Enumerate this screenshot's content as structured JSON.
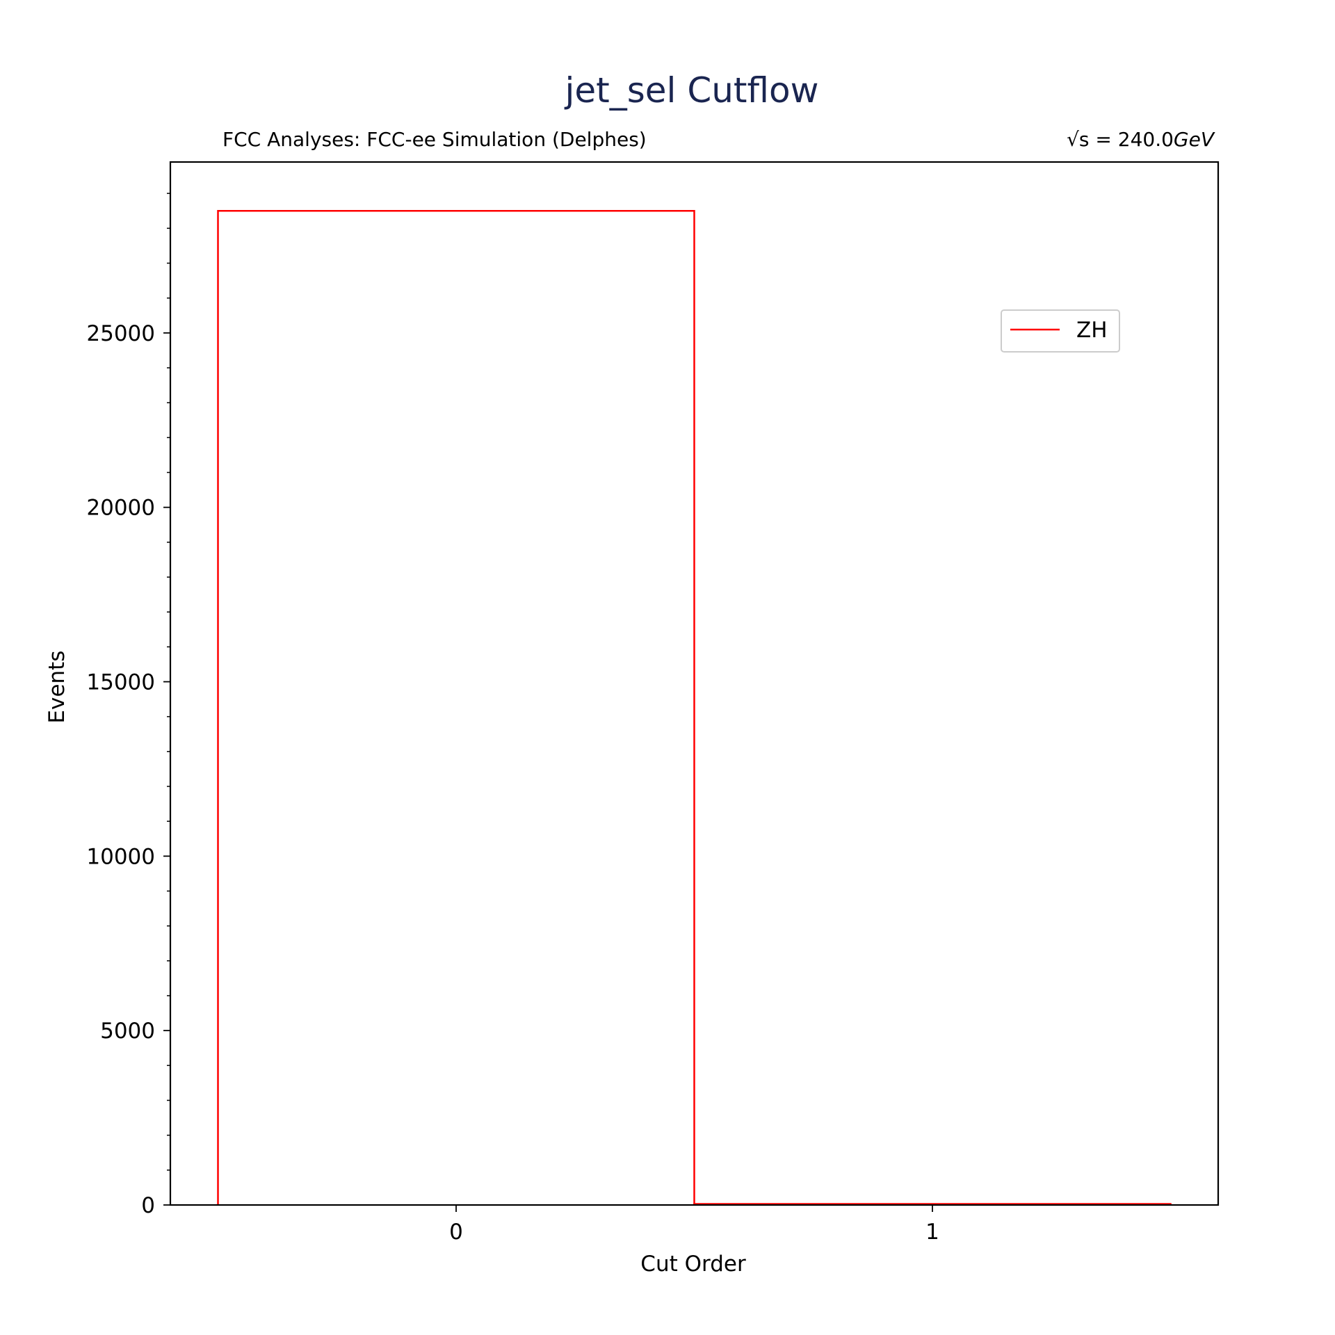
{
  "colors": {
    "title": "#1a2550",
    "series": "#ff0000",
    "axes": "#000000",
    "legend_border": "#cccccc"
  },
  "chart_data": {
    "type": "bar",
    "style": "step-histogram",
    "title": "jet_sel Cutflow",
    "subtitle_left": "FCC Analyses: FCC-ee Simulation (Delphes)",
    "subtitle_right_prefix": "√s = 240.0",
    "subtitle_right_unit": "GeV",
    "xlabel": "Cut Order",
    "ylabel": "Events",
    "categories": [
      "0",
      "1"
    ],
    "x_bin_edges": [
      -0.5,
      0.5,
      1.5
    ],
    "xlim": [
      -0.6,
      1.6
    ],
    "ylim": [
      0,
      29900
    ],
    "y_major_ticks": [
      0,
      5000,
      10000,
      15000,
      20000,
      25000
    ],
    "y_tick_labels": [
      "0",
      "5000",
      "10000",
      "15000",
      "20000",
      "25000"
    ],
    "y_minor_step": 1000,
    "grid": false,
    "legend_position": "upper-right",
    "series": [
      {
        "name": "ZH",
        "values": [
          28500,
          30
        ]
      }
    ]
  }
}
